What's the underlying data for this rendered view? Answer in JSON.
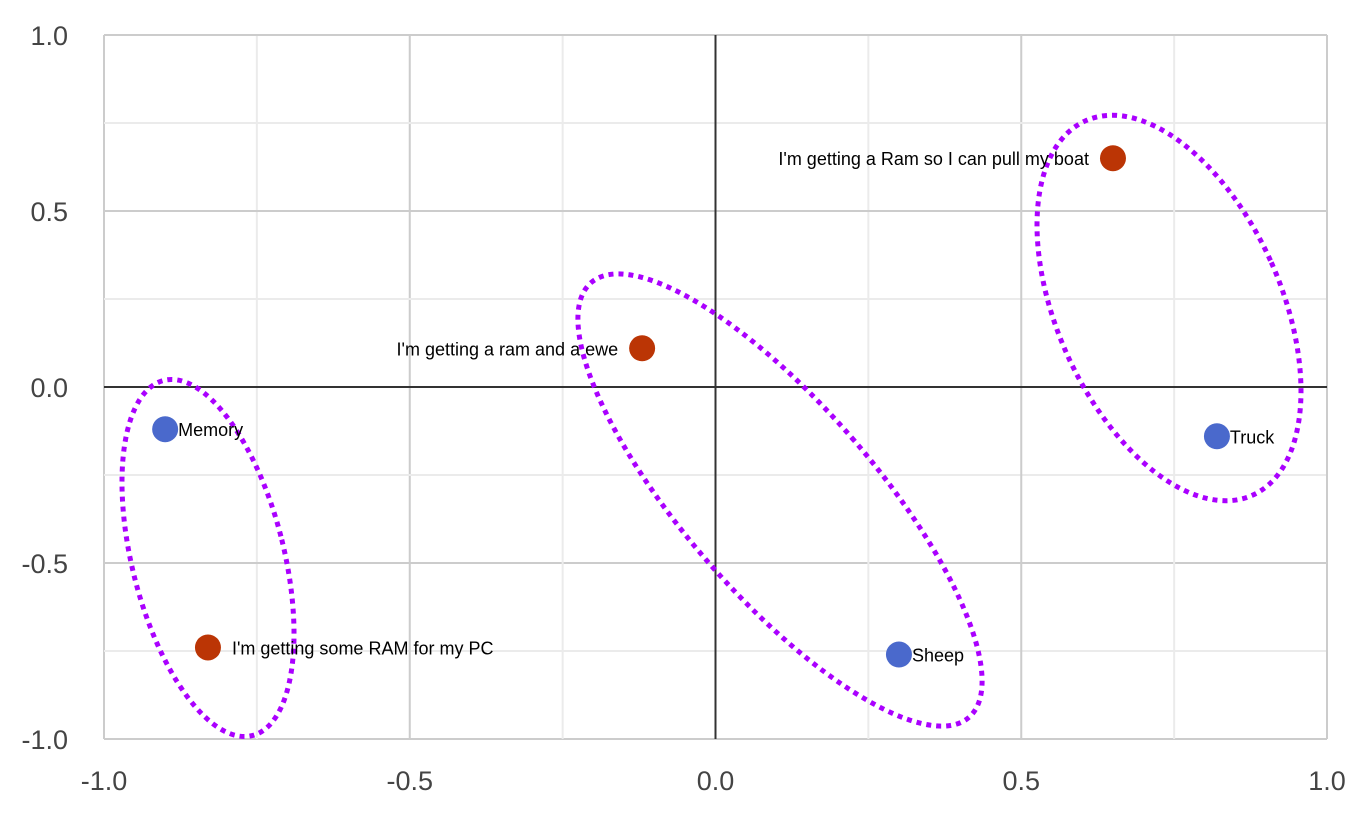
{
  "chart_data": {
    "type": "scatter",
    "title": "",
    "xlabel": "",
    "ylabel": "",
    "xlim": [
      -1.0,
      1.0
    ],
    "ylim": [
      -1.0,
      1.0
    ],
    "grid": true,
    "legend": "none",
    "x_ticks": [
      "-1.0",
      "-0.5",
      "0.0",
      "0.5",
      "1.0"
    ],
    "y_ticks": [
      "1.0",
      "0.5",
      "0.0",
      "-0.5",
      "-1.0"
    ],
    "colors": {
      "word": "#4a69cc",
      "sentence": "#bb3505",
      "annotation": "#aa00ff"
    },
    "points": [
      {
        "label": "Memory",
        "x": -0.9,
        "y": -0.12,
        "kind": "word"
      },
      {
        "label": "I'm getting some RAM for my PC",
        "x": -0.83,
        "y": -0.74,
        "kind": "sentence"
      },
      {
        "label": "I'm getting a ram and a ewe",
        "x": -0.12,
        "y": 0.11,
        "kind": "sentence"
      },
      {
        "label": "Sheep",
        "x": 0.3,
        "y": -0.76,
        "kind": "word"
      },
      {
        "label": "I'm getting a Ram so I can pull my boat",
        "x": 0.65,
        "y": 0.65,
        "kind": "sentence"
      },
      {
        "label": "Truck",
        "x": 0.82,
        "y": -0.14,
        "kind": "word"
      }
    ],
    "annotations": "dotted ellipses grouping each word with its matching sentence"
  }
}
